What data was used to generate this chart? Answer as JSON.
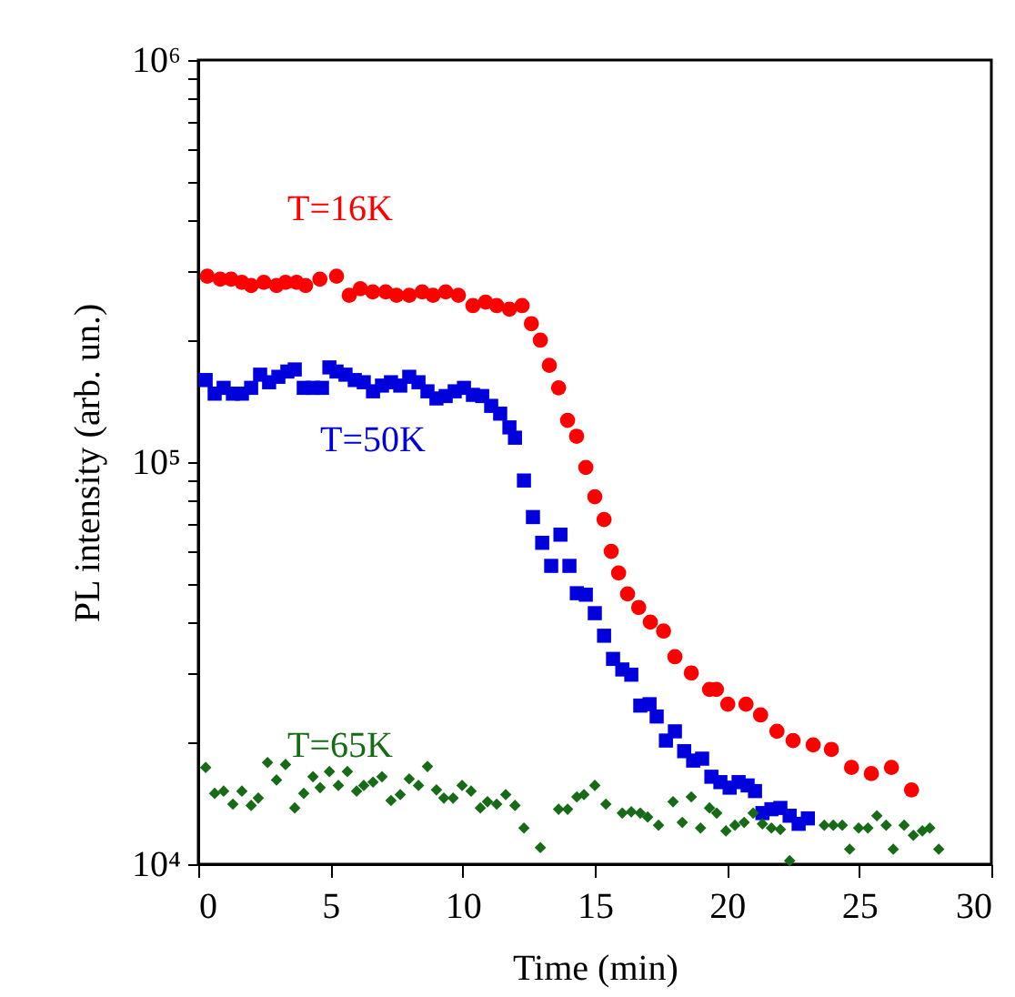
{
  "chart_data": {
    "type": "scatter",
    "xlabel": "Time (min)",
    "ylabel": "PL intensity (arb. un.)",
    "log": "y",
    "xlim": [
      0,
      30
    ],
    "xticks": [
      0,
      5,
      10,
      15,
      20,
      25,
      30
    ],
    "ylim": [
      10000,
      1000000
    ],
    "yticks": [
      {
        "value": 10000,
        "label": "10⁴"
      },
      {
        "value": 20000,
        "label": null
      },
      {
        "value": 30000,
        "label": null
      },
      {
        "value": 40000,
        "label": null
      },
      {
        "value": 50000,
        "label": null
      },
      {
        "value": 60000,
        "label": null
      },
      {
        "value": 70000,
        "label": null
      },
      {
        "value": 80000,
        "label": null
      },
      {
        "value": 90000,
        "label": null
      },
      {
        "value": 100000,
        "label": "10⁵"
      },
      {
        "value": 200000,
        "label": null
      },
      {
        "value": 300000,
        "label": null
      },
      {
        "value": 400000,
        "label": null
      },
      {
        "value": 500000,
        "label": null
      },
      {
        "value": 600000,
        "label": null
      },
      {
        "value": 700000,
        "label": null
      },
      {
        "value": 800000,
        "label": null
      },
      {
        "value": 900000,
        "label": null
      },
      {
        "value": 1000000,
        "label": "10⁶"
      }
    ],
    "grid": false,
    "series": [
      {
        "name": "T=16K",
        "color": "#ff0000",
        "marker": "circle",
        "x": [
          0.34,
          0.83,
          1.24,
          1.65,
          2.0,
          2.48,
          2.96,
          3.3,
          3.72,
          4.06,
          4.6,
          5.23,
          5.71,
          6.13,
          6.6,
          7.09,
          7.5,
          7.98,
          8.47,
          8.88,
          9.36,
          9.84,
          10.39,
          10.87,
          11.29,
          11.77,
          12.25,
          12.6,
          12.94,
          13.28,
          13.63,
          13.97,
          14.31,
          14.66,
          15.0,
          15.35,
          15.62,
          15.9,
          16.24,
          16.66,
          17.1,
          17.6,
          18.03,
          18.65,
          19.34,
          19.6,
          20.03,
          20.72,
          21.27,
          21.89,
          22.5,
          23.26,
          23.95,
          24.71,
          25.46,
          26.22,
          26.98
        ],
        "values": [
          290000,
          285000,
          285000,
          280000,
          275000,
          280000,
          275000,
          280000,
          280000,
          275000,
          285000,
          290000,
          260000,
          270000,
          265000,
          265000,
          260000,
          260000,
          265000,
          260000,
          265000,
          260000,
          245000,
          250000,
          245000,
          240000,
          245000,
          221000,
          201000,
          174000,
          153000,
          127000,
          116000,
          97000,
          82000,
          72000,
          60000,
          53000,
          47000,
          43500,
          40000,
          38000,
          32800,
          29900,
          27200,
          27200,
          25000,
          25000,
          23500,
          21400,
          20300,
          19800,
          19300,
          17400,
          16800,
          17400,
          15300
        ]
      },
      {
        "name": "T=50K",
        "color": "#0000dd",
        "marker": "square",
        "x": [
          0.28,
          0.62,
          0.96,
          1.31,
          1.65,
          2.0,
          2.34,
          2.68,
          3.03,
          3.37,
          3.65,
          3.99,
          4.34,
          4.68,
          4.96,
          5.23,
          5.57,
          5.92,
          6.26,
          6.61,
          6.95,
          7.29,
          7.64,
          7.98,
          8.33,
          8.67,
          9.01,
          9.36,
          9.7,
          10.05,
          10.39,
          10.74,
          11.08,
          11.42,
          11.77,
          11.98,
          12.32,
          12.66,
          13.01,
          13.35,
          13.7,
          14.04,
          14.32,
          14.66,
          15.0,
          15.35,
          15.69,
          16.04,
          16.38,
          16.72,
          17.07,
          17.34,
          17.69,
          18.03,
          18.38,
          18.72,
          19.06,
          19.41,
          19.75,
          20.1,
          20.44,
          20.78,
          21.06,
          21.34,
          21.68,
          22.02,
          22.37,
          22.71,
          23.06
        ],
        "values": [
          160000,
          148000,
          153000,
          148000,
          148000,
          153000,
          165000,
          158000,
          163000,
          168000,
          170000,
          153000,
          153000,
          153000,
          172000,
          168000,
          165000,
          160000,
          158000,
          150000,
          155000,
          158000,
          155000,
          163000,
          158000,
          150000,
          144000,
          146000,
          150000,
          153000,
          147000,
          146000,
          138000,
          132000,
          122000,
          115000,
          90000,
          73000,
          63000,
          55200,
          66000,
          55200,
          47200,
          46800,
          42100,
          37000,
          32400,
          30500,
          29600,
          24800,
          25000,
          23300,
          20300,
          21400,
          19100,
          18100,
          18300,
          16500,
          16000,
          15500,
          16000,
          15700,
          15200,
          13400,
          13700,
          13800,
          13200,
          12600,
          13000
        ]
      },
      {
        "name": "T=65K",
        "color": "#176b17",
        "marker": "diamond",
        "x": [
          0.28,
          0.62,
          0.96,
          1.31,
          1.65,
          2.0,
          2.27,
          2.62,
          2.96,
          3.3,
          3.65,
          3.99,
          4.34,
          4.61,
          4.96,
          5.3,
          5.64,
          5.99,
          6.26,
          6.61,
          6.95,
          7.29,
          7.64,
          7.98,
          8.33,
          8.67,
          9.01,
          9.29,
          9.64,
          9.98,
          10.32,
          10.67,
          10.94,
          11.29,
          11.63,
          11.98,
          12.32,
          12.94,
          13.63,
          13.97,
          14.32,
          14.59,
          15.0,
          15.42,
          16.04,
          16.38,
          16.72,
          17.0,
          17.41,
          17.96,
          18.31,
          18.65,
          19.0,
          19.34,
          19.61,
          19.96,
          20.3,
          20.65,
          20.99,
          21.34,
          21.68,
          22.02,
          22.37,
          23.68,
          24.02,
          24.36,
          24.64,
          24.98,
          25.33,
          25.67,
          26.02,
          26.29,
          26.7,
          27.05,
          27.39,
          27.67,
          28.01
        ],
        "values": [
          17400,
          15000,
          15200,
          14100,
          15200,
          14000,
          14600,
          17900,
          16200,
          17700,
          13800,
          15000,
          16500,
          15500,
          17000,
          15700,
          17000,
          15200,
          15700,
          16000,
          16500,
          14400,
          14900,
          16300,
          15700,
          17500,
          15300,
          14600,
          14600,
          15700,
          15200,
          13800,
          14300,
          14100,
          14900,
          14000,
          12300,
          11000,
          13700,
          13700,
          14700,
          14900,
          15700,
          14100,
          13400,
          13500,
          13400,
          13100,
          12500,
          14300,
          12700,
          14700,
          12300,
          13800,
          13400,
          12100,
          12500,
          12700,
          13400,
          12600,
          12300,
          12200,
          10200,
          12500,
          12500,
          12500,
          10900,
          12300,
          12300,
          13200,
          12500,
          10900,
          12500,
          11800,
          12100,
          12300,
          10900
        ]
      }
    ]
  }
}
